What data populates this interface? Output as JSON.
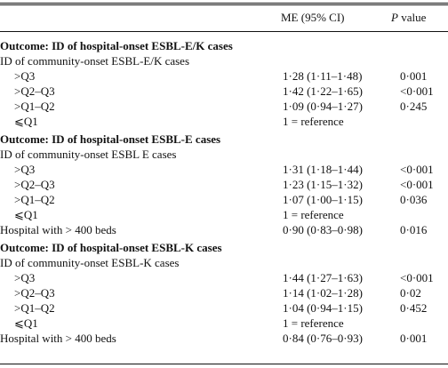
{
  "header": {
    "me_label": "ME (95% CI)",
    "p_label_italic": "P",
    "p_label_rest": " value"
  },
  "rows": [
    {
      "label": "Outcome: ID of hospital-onset ESBL-E/K cases",
      "kind": "section",
      "me": "",
      "p": ""
    },
    {
      "label": "ID of community-onset ESBL-E/K cases",
      "kind": "plain",
      "me": "",
      "p": ""
    },
    {
      "label": ">Q3",
      "kind": "indent",
      "me": "1·28 (1·11–1·48)",
      "p": "0·001"
    },
    {
      "label": ">Q2–Q3",
      "kind": "indent",
      "me": "1·42 (1·22–1·65)",
      "p": "<0·001"
    },
    {
      "label": ">Q1–Q2",
      "kind": "indent",
      "me": "1·09 (0·94–1·27)",
      "p": "0·245"
    },
    {
      "label": "⩽Q1",
      "kind": "indent",
      "me": "1 = reference",
      "p": ""
    },
    {
      "label": "Outcome: ID of hospital-onset ESBL-E cases",
      "kind": "section",
      "me": "",
      "p": ""
    },
    {
      "label": "ID of community-onset ESBL E cases",
      "kind": "plain",
      "me": "",
      "p": ""
    },
    {
      "label": ">Q3",
      "kind": "indent",
      "me": "1·31 (1·18–1·44)",
      "p": "<0·001"
    },
    {
      "label": ">Q2–Q3",
      "kind": "indent",
      "me": "1·23 (1·15–1·32)",
      "p": "<0·001"
    },
    {
      "label": ">Q1–Q2",
      "kind": "indent",
      "me": "1·07 (1·00–1·15)",
      "p": "0·036"
    },
    {
      "label": "⩽Q1",
      "kind": "indent",
      "me": "1 = reference",
      "p": ""
    },
    {
      "label": "Hospital with > 400 beds",
      "kind": "plain",
      "me": "0·90 (0·83–0·98)",
      "p": "0·016"
    },
    {
      "label": "Outcome: ID of hospital-onset ESBL-K cases",
      "kind": "section",
      "me": "",
      "p": ""
    },
    {
      "label": "ID of community-onset ESBL-K cases",
      "kind": "plain",
      "me": "",
      "p": ""
    },
    {
      "label": ">Q3",
      "kind": "indent",
      "me": "1·44 (1·27–1·63)",
      "p": "<0·001"
    },
    {
      "label": ">Q2–Q3",
      "kind": "indent",
      "me": "1·14 (1·02–1·28)",
      "p": "0·02"
    },
    {
      "label": ">Q1–Q2",
      "kind": "indent",
      "me": "1·04 (0·94–1·15)",
      "p": "0·452"
    },
    {
      "label": "⩽Q1",
      "kind": "indent",
      "me": "1 = reference",
      "p": ""
    },
    {
      "label": "Hospital with > 400 beds",
      "kind": "plain",
      "me": "0·84 (0·76–0·93)",
      "p": "0·001"
    }
  ]
}
